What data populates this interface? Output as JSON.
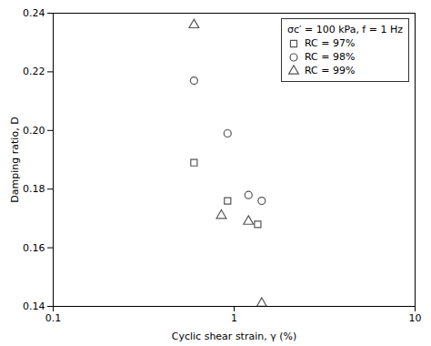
{
  "chart_data": {
    "type": "scatter",
    "x_label": "Cyclic shear strain, γ (%)",
    "y_label": "Damping ratio, D",
    "legend_title": "σc′ = 100 kPa, f = 1 Hz",
    "legend": "upper right",
    "log": "x",
    "grid": false,
    "xlim": [
      0.1,
      10
    ],
    "xticks": [
      0.1,
      1,
      10
    ],
    "ylim": [
      0.14,
      0.24
    ],
    "yticks": [
      0.14,
      0.16,
      0.18,
      {
        "value": 0.2,
        "label": "0.20"
      },
      0.22,
      0.24
    ],
    "series": [
      {
        "name": "RC = 97%",
        "color": "#555555",
        "marker": "square",
        "x": [
          0.6,
          0.92,
          1.35
        ],
        "values": [
          0.189,
          0.176,
          0.168
        ]
      },
      {
        "name": "RC = 98%",
        "color": "#555555",
        "marker": "circle",
        "x": [
          0.6,
          0.92,
          1.2,
          1.42
        ],
        "values": [
          0.217,
          0.199,
          0.178,
          0.176
        ]
      },
      {
        "name": "RC = 99%",
        "color": "#555555",
        "marker": "triangle",
        "x": [
          0.6,
          0.85,
          1.2,
          1.42
        ],
        "values": [
          0.236,
          0.171,
          0.169,
          0.141
        ]
      }
    ]
  }
}
